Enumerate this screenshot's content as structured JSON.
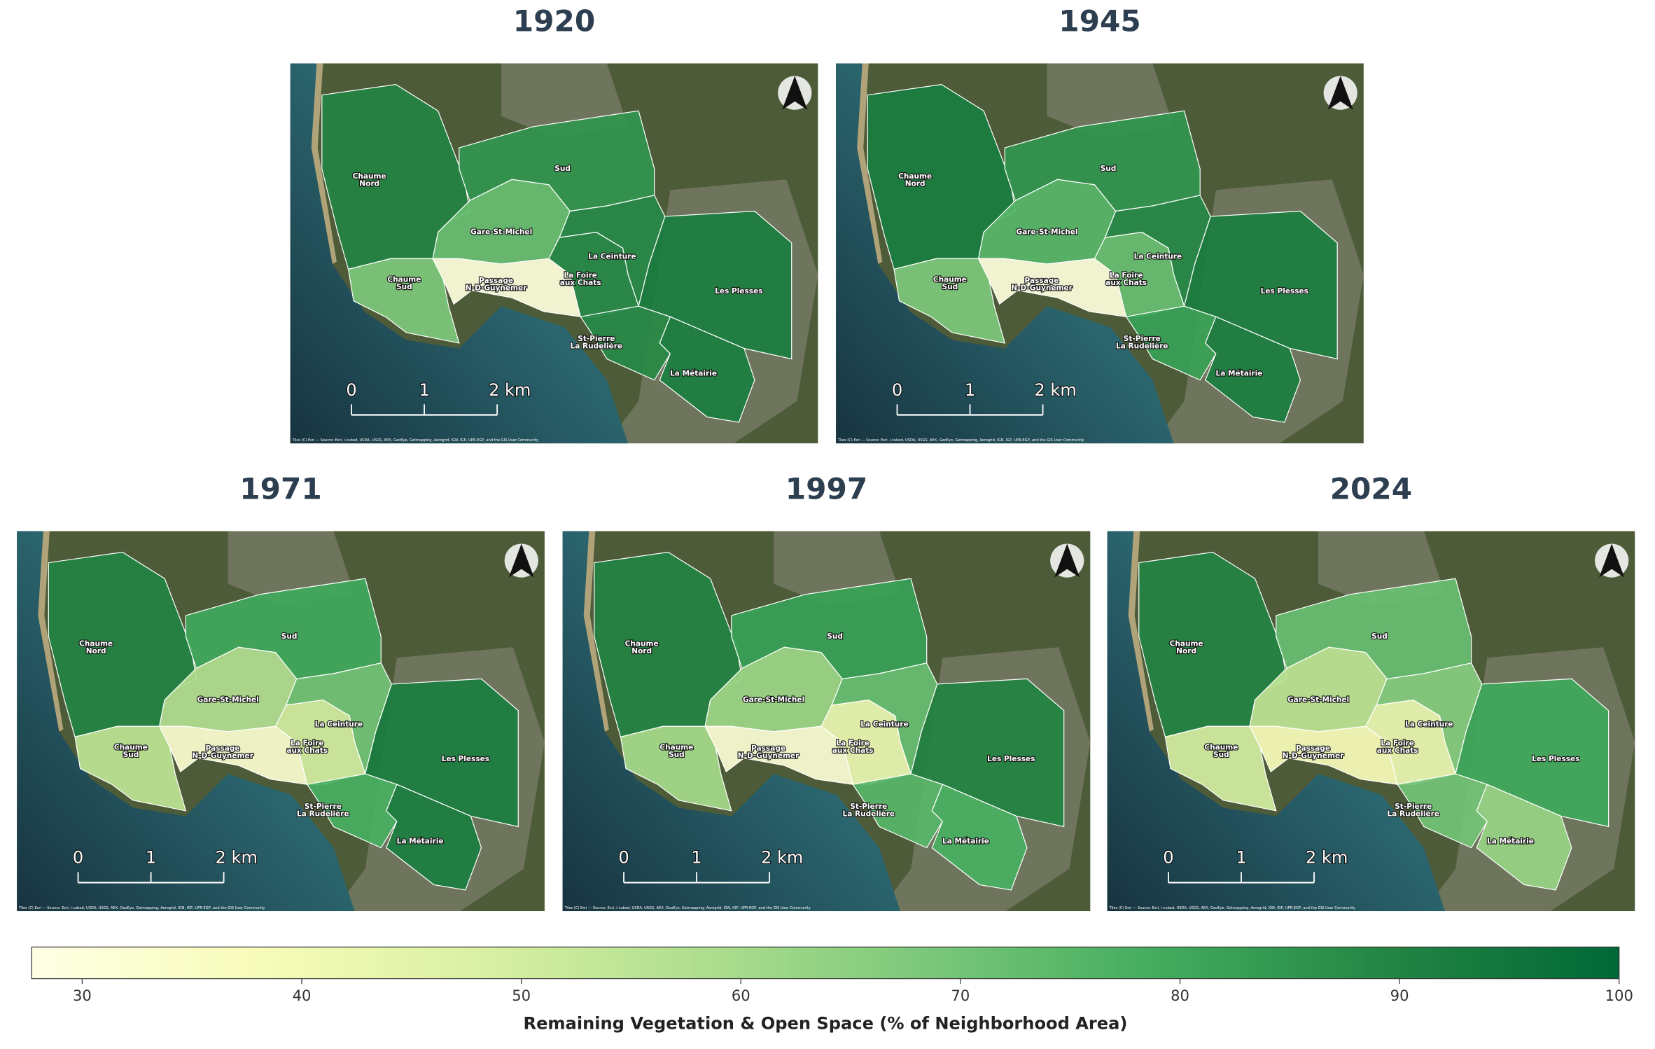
{
  "chart_data": {
    "type": "choropleth",
    "regions": [
      [
        "Chaume",
        "Nord"
      ],
      [
        "Sud"
      ],
      [
        "Gare-St-Michel"
      ],
      [
        "La Ceinture"
      ],
      [
        "Chaume",
        "Sud"
      ],
      [
        "Passage",
        "N-D-Guynemer"
      ],
      [
        "La Foire",
        "aux Chats"
      ],
      [
        "Les Plesses"
      ],
      [
        "St-Pierre",
        "La Rudelière"
      ],
      [
        "La Métairie"
      ]
    ],
    "panels": [
      {
        "title": "1920",
        "values": [
          90,
          85,
          72,
          88,
          68,
          30,
          88,
          92,
          88,
          92
        ]
      },
      {
        "title": "1945",
        "values": [
          92,
          85,
          75,
          88,
          68,
          30,
          72,
          92,
          82,
          92
        ]
      },
      {
        "title": "1971",
        "values": [
          90,
          80,
          58,
          70,
          55,
          33,
          50,
          92,
          78,
          92
        ]
      },
      {
        "title": "1997",
        "values": [
          90,
          82,
          62,
          72,
          60,
          32,
          42,
          90,
          75,
          78
        ]
      },
      {
        "title": "2024",
        "values": [
          90,
          72,
          55,
          66,
          50,
          38,
          42,
          80,
          70,
          63
        ]
      }
    ],
    "scale_bar": [
      "0",
      "1",
      "2 km"
    ],
    "attribution": "Tiles (C) Esri — Source: Esri, i-cubed, USDA, USGS, AEX, GeoEye, Getmapping, Aerogrid, IGN, IGP, UPR-EGP, and the GIS User Community",
    "colorbar": {
      "label": "Remaining Vegetation & Open Space (% of Neighborhood Area)",
      "clim": [
        27.7,
        100
      ],
      "ticks": [
        30,
        40,
        50,
        60,
        70,
        80,
        90,
        100
      ],
      "colormap": [
        "#ffffe5",
        "#f7fcb9",
        "#d9f0a3",
        "#addd8e",
        "#78c679",
        "#41ab5d",
        "#238443",
        "#006837"
      ]
    }
  }
}
